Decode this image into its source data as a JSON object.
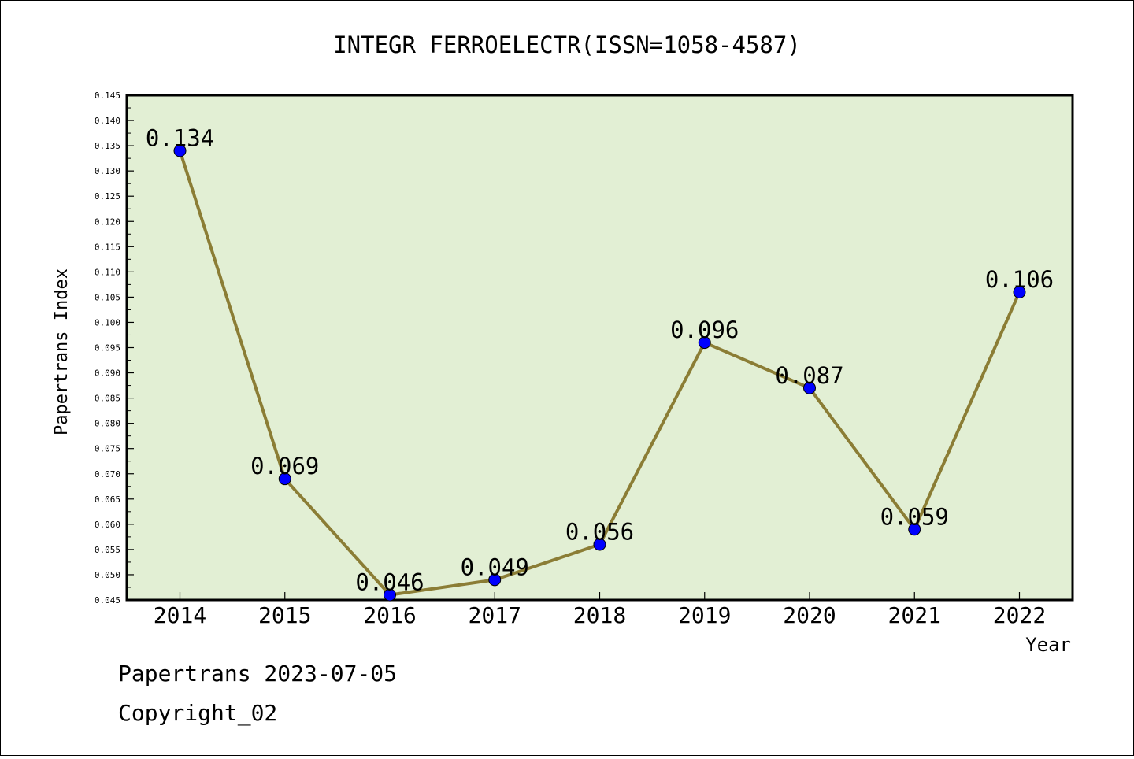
{
  "chart_data": {
    "type": "line",
    "title": "INTEGR FERROELECTR(ISSN=1058-4587)",
    "xlabel": "Year",
    "ylabel": "Papertrans Index",
    "categories": [
      "2014",
      "2015",
      "2016",
      "2017",
      "2018",
      "2019",
      "2020",
      "2021",
      "2022"
    ],
    "series": [
      {
        "values": [
          0.134,
          0.069,
          0.046,
          0.049,
          0.056,
          0.096,
          0.087,
          0.059,
          0.106
        ],
        "labels": [
          "0.134",
          "0.069",
          "0.046",
          "0.049",
          "0.056",
          "0.096",
          "0.087",
          "0.059",
          "0.106"
        ]
      }
    ],
    "ylim": [
      0.045,
      0.145
    ],
    "y_tick_step": 0.005,
    "y_ticks": [
      "0.045",
      "0.050",
      "0.055",
      "0.060",
      "0.065",
      "0.070",
      "0.075",
      "0.080",
      "0.085",
      "0.090",
      "0.095",
      "0.100",
      "0.105",
      "0.110",
      "0.115",
      "0.120",
      "0.125",
      "0.130",
      "0.135",
      "0.140",
      "0.145"
    ],
    "grid": false,
    "colors": {
      "plot_background": "#e2efd4",
      "line": "#8b7d35",
      "marker": "#0000ff"
    }
  },
  "footer": {
    "line1": "Papertrans 2023-07-05",
    "line2": "Copyright_02"
  }
}
